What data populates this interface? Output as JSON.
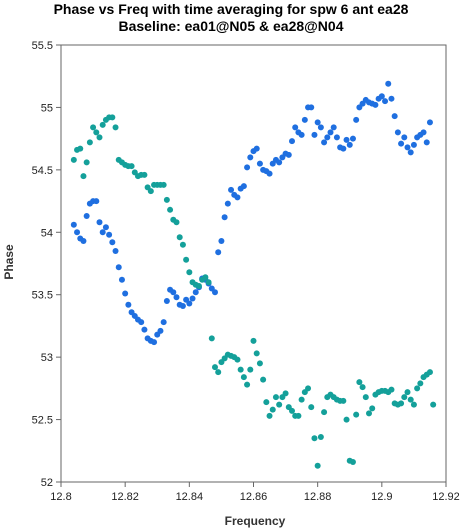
{
  "chart_data": {
    "type": "scatter",
    "title": "Phase vs Freq with time averaging for spw 6 ant ea28",
    "subtitle": "Baseline: ea01@N05 & ea28@N04",
    "xlabel": "Frequency",
    "ylabel": "Phase",
    "xlim": [
      12.8,
      12.92
    ],
    "ylim": [
      52,
      55.5
    ],
    "xticks": [
      "12.8",
      "12.82",
      "12.84",
      "12.86",
      "12.88",
      "12.9",
      "12.92"
    ],
    "yticks": [
      "52",
      "52.5",
      "53",
      "53.5",
      "54",
      "54.5",
      "55",
      "55.5"
    ],
    "grid": false,
    "series": [
      {
        "color": "#1f6fe0",
        "points": [
          [
            12.804,
            54.06
          ],
          [
            12.805,
            54.0
          ],
          [
            12.806,
            53.95
          ],
          [
            12.807,
            53.93
          ],
          [
            12.808,
            54.13
          ],
          [
            12.809,
            54.23
          ],
          [
            12.81,
            54.25
          ],
          [
            12.811,
            54.25
          ],
          [
            12.812,
            54.08
          ],
          [
            12.813,
            54.0
          ],
          [
            12.814,
            54.04
          ],
          [
            12.815,
            53.98
          ],
          [
            12.816,
            53.92
          ],
          [
            12.817,
            53.85
          ],
          [
            12.818,
            53.72
          ],
          [
            12.819,
            53.62
          ],
          [
            12.82,
            53.51
          ],
          [
            12.821,
            53.42
          ],
          [
            12.822,
            53.36
          ],
          [
            12.823,
            53.33
          ],
          [
            12.824,
            53.3
          ],
          [
            12.825,
            53.28
          ],
          [
            12.826,
            53.22
          ],
          [
            12.827,
            53.15
          ],
          [
            12.828,
            53.13
          ],
          [
            12.829,
            53.12
          ],
          [
            12.83,
            53.18
          ],
          [
            12.831,
            53.21
          ],
          [
            12.832,
            53.28
          ],
          [
            12.833,
            53.45
          ],
          [
            12.834,
            53.54
          ],
          [
            12.835,
            53.52
          ],
          [
            12.836,
            53.48
          ],
          [
            12.837,
            53.42
          ],
          [
            12.838,
            53.41
          ],
          [
            12.839,
            53.46
          ],
          [
            12.84,
            53.43
          ],
          [
            12.841,
            53.47
          ],
          [
            12.842,
            53.52
          ],
          [
            12.843,
            53.56
          ],
          [
            12.844,
            53.63
          ],
          [
            12.845,
            53.62
          ],
          [
            12.846,
            53.59
          ],
          [
            12.847,
            53.55
          ],
          [
            12.848,
            53.52
          ],
          [
            12.849,
            53.84
          ],
          [
            12.85,
            53.93
          ],
          [
            12.851,
            54.12
          ],
          [
            12.852,
            54.23
          ],
          [
            12.853,
            54.34
          ],
          [
            12.854,
            54.3
          ],
          [
            12.855,
            54.28
          ],
          [
            12.856,
            54.35
          ],
          [
            12.857,
            54.37
          ],
          [
            12.858,
            54.52
          ],
          [
            12.859,
            54.6
          ],
          [
            12.86,
            54.65
          ],
          [
            12.861,
            54.67
          ],
          [
            12.862,
            54.55
          ],
          [
            12.863,
            54.5
          ],
          [
            12.864,
            54.49
          ],
          [
            12.865,
            54.47
          ],
          [
            12.866,
            54.55
          ],
          [
            12.867,
            54.58
          ],
          [
            12.868,
            54.56
          ],
          [
            12.869,
            54.6
          ],
          [
            12.87,
            54.63
          ],
          [
            12.871,
            54.62
          ],
          [
            12.872,
            54.73
          ],
          [
            12.873,
            54.84
          ],
          [
            12.874,
            54.8
          ],
          [
            12.875,
            54.78
          ],
          [
            12.876,
            54.9
          ],
          [
            12.877,
            55.0
          ],
          [
            12.878,
            55.0
          ],
          [
            12.879,
            54.78
          ],
          [
            12.88,
            54.88
          ],
          [
            12.881,
            54.84
          ],
          [
            12.882,
            54.72
          ],
          [
            12.883,
            54.76
          ],
          [
            12.884,
            54.8
          ],
          [
            12.885,
            54.84
          ],
          [
            12.886,
            54.76
          ],
          [
            12.887,
            54.68
          ],
          [
            12.888,
            54.67
          ],
          [
            12.889,
            54.74
          ],
          [
            12.89,
            54.7
          ],
          [
            12.891,
            54.75
          ],
          [
            12.892,
            54.9
          ],
          [
            12.893,
            55.0
          ],
          [
            12.894,
            55.03
          ],
          [
            12.895,
            55.06
          ],
          [
            12.896,
            55.04
          ],
          [
            12.897,
            55.03
          ],
          [
            12.898,
            55.02
          ],
          [
            12.899,
            55.07
          ],
          [
            12.9,
            55.09
          ],
          [
            12.901,
            55.05
          ],
          [
            12.902,
            55.19
          ],
          [
            12.903,
            55.07
          ],
          [
            12.904,
            54.93
          ],
          [
            12.905,
            54.8
          ],
          [
            12.906,
            54.71
          ],
          [
            12.907,
            54.76
          ],
          [
            12.908,
            54.68
          ],
          [
            12.909,
            54.64
          ],
          [
            12.91,
            54.7
          ],
          [
            12.911,
            54.76
          ],
          [
            12.912,
            54.78
          ],
          [
            12.913,
            54.8
          ],
          [
            12.914,
            54.72
          ],
          [
            12.915,
            54.88
          ]
        ]
      },
      {
        "color": "#14a09a",
        "points": [
          [
            12.804,
            54.58
          ],
          [
            12.805,
            54.66
          ],
          [
            12.806,
            54.67
          ],
          [
            12.807,
            54.45
          ],
          [
            12.808,
            54.56
          ],
          [
            12.809,
            54.72
          ],
          [
            12.81,
            54.84
          ],
          [
            12.811,
            54.8
          ],
          [
            12.812,
            54.76
          ],
          [
            12.813,
            54.86
          ],
          [
            12.814,
            54.9
          ],
          [
            12.815,
            54.92
          ],
          [
            12.816,
            54.92
          ],
          [
            12.817,
            54.84
          ],
          [
            12.818,
            54.58
          ],
          [
            12.819,
            54.56
          ],
          [
            12.82,
            54.54
          ],
          [
            12.821,
            54.53
          ],
          [
            12.822,
            54.53
          ],
          [
            12.823,
            54.48
          ],
          [
            12.824,
            54.45
          ],
          [
            12.825,
            54.46
          ],
          [
            12.826,
            54.46
          ],
          [
            12.827,
            54.36
          ],
          [
            12.828,
            54.33
          ],
          [
            12.829,
            54.38
          ],
          [
            12.83,
            54.38
          ],
          [
            12.831,
            54.38
          ],
          [
            12.832,
            54.38
          ],
          [
            12.833,
            54.26
          ],
          [
            12.834,
            54.18
          ],
          [
            12.835,
            54.1
          ],
          [
            12.836,
            54.08
          ],
          [
            12.837,
            53.96
          ],
          [
            12.838,
            53.9
          ],
          [
            12.839,
            53.78
          ],
          [
            12.84,
            53.68
          ],
          [
            12.841,
            53.6
          ],
          [
            12.842,
            53.58
          ],
          [
            12.843,
            53.57
          ],
          [
            12.844,
            53.62
          ],
          [
            12.845,
            53.64
          ],
          [
            12.846,
            53.6
          ],
          [
            12.847,
            53.15
          ],
          [
            12.848,
            52.92
          ],
          [
            12.849,
            52.88
          ],
          [
            12.85,
            52.96
          ],
          [
            12.851,
            52.99
          ],
          [
            12.852,
            53.02
          ],
          [
            12.853,
            53.01
          ],
          [
            12.854,
            53.0
          ],
          [
            12.855,
            52.98
          ],
          [
            12.856,
            52.9
          ],
          [
            12.857,
            52.84
          ],
          [
            12.858,
            52.78
          ],
          [
            12.859,
            52.9
          ],
          [
            12.86,
            53.13
          ],
          [
            12.861,
            53.03
          ],
          [
            12.862,
            52.95
          ],
          [
            12.863,
            52.82
          ],
          [
            12.864,
            52.64
          ],
          [
            12.865,
            52.53
          ],
          [
            12.866,
            52.58
          ],
          [
            12.867,
            52.68
          ],
          [
            12.868,
            52.62
          ],
          [
            12.869,
            52.68
          ],
          [
            12.87,
            52.71
          ],
          [
            12.871,
            52.6
          ],
          [
            12.872,
            52.57
          ],
          [
            12.873,
            52.53
          ],
          [
            12.874,
            52.53
          ],
          [
            12.875,
            52.66
          ],
          [
            12.876,
            52.72
          ],
          [
            12.877,
            52.75
          ],
          [
            12.878,
            52.6
          ],
          [
            12.879,
            52.35
          ],
          [
            12.88,
            52.13
          ],
          [
            12.881,
            52.36
          ],
          [
            12.882,
            52.56
          ],
          [
            12.883,
            52.68
          ],
          [
            12.884,
            52.7
          ],
          [
            12.885,
            52.68
          ],
          [
            12.886,
            52.66
          ],
          [
            12.887,
            52.65
          ],
          [
            12.888,
            52.65
          ],
          [
            12.889,
            52.5
          ],
          [
            12.89,
            52.17
          ],
          [
            12.891,
            52.16
          ],
          [
            12.892,
            52.54
          ],
          [
            12.893,
            52.8
          ],
          [
            12.894,
            52.76
          ],
          [
            12.895,
            52.68
          ],
          [
            12.896,
            52.55
          ],
          [
            12.897,
            52.59
          ],
          [
            12.898,
            52.7
          ],
          [
            12.899,
            52.72
          ],
          [
            12.9,
            52.73
          ],
          [
            12.901,
            52.73
          ],
          [
            12.902,
            52.72
          ],
          [
            12.903,
            52.74
          ],
          [
            12.904,
            52.63
          ],
          [
            12.905,
            52.62
          ],
          [
            12.906,
            52.63
          ],
          [
            12.907,
            52.68
          ],
          [
            12.908,
            52.72
          ],
          [
            12.909,
            52.66
          ],
          [
            12.91,
            52.62
          ],
          [
            12.911,
            52.75
          ],
          [
            12.912,
            52.79
          ],
          [
            12.913,
            52.84
          ],
          [
            12.914,
            52.86
          ],
          [
            12.915,
            52.88
          ],
          [
            12.916,
            52.62
          ]
        ]
      }
    ]
  }
}
